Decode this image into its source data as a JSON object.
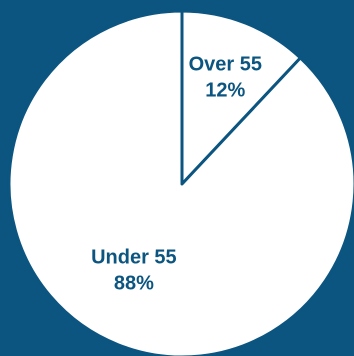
{
  "colors": {
    "background": "#0b5580",
    "slice_fill": "#ffffff",
    "slice_stroke": "#0b5580",
    "label_text": "#0b5580"
  },
  "chart_data": {
    "type": "pie",
    "title": "",
    "slices": [
      {
        "label": "Over 55",
        "value": 12,
        "display": "12%"
      },
      {
        "label": "Under 55",
        "value": 88,
        "display": "88%"
      }
    ],
    "legend": "none"
  }
}
